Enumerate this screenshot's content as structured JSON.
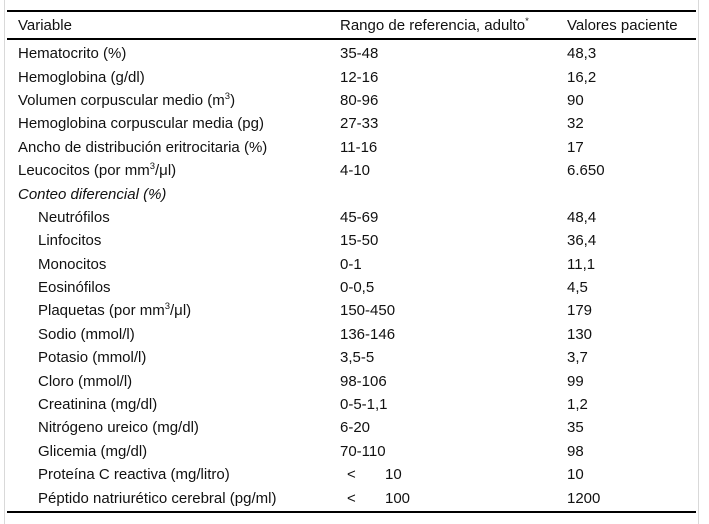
{
  "table": {
    "columns": [
      {
        "label": "Variable"
      },
      {
        "label": "Rango de referencia, adulto",
        "sup": "*"
      },
      {
        "label": "Valores paciente"
      }
    ],
    "rows": [
      {
        "label": [
          {
            "text": "Hematocrito (%)"
          }
        ],
        "indent": false,
        "italic": false,
        "range": "35-48",
        "value": "48,3"
      },
      {
        "label": [
          {
            "text": "Hemoglobina (g/dl)"
          }
        ],
        "indent": false,
        "italic": false,
        "range": "12-16",
        "value": "16,2"
      },
      {
        "label": [
          {
            "text": "Volumen corpuscular medio (m"
          },
          {
            "sup": "3"
          },
          {
            "text": ")"
          }
        ],
        "indent": false,
        "italic": false,
        "range": "80-96",
        "value": "90"
      },
      {
        "label": [
          {
            "text": "Hemoglobina corpuscular media (pg)"
          }
        ],
        "indent": false,
        "italic": false,
        "range": "27-33",
        "value": "32"
      },
      {
        "label": [
          {
            "text": "Ancho de distribución eritrocitaria (%)"
          }
        ],
        "indent": false,
        "italic": false,
        "range": "11-16",
        "value": "17"
      },
      {
        "label": [
          {
            "text": "Leucocitos (por mm"
          },
          {
            "sup": "3"
          },
          {
            "text": "/μl)"
          }
        ],
        "indent": false,
        "italic": false,
        "range": "4-10",
        "value": "6.650"
      },
      {
        "label": [
          {
            "text": "Conteo diferencial (%)"
          }
        ],
        "indent": false,
        "italic": true,
        "range": "",
        "value": ""
      },
      {
        "label": [
          {
            "text": "Neutrófilos"
          }
        ],
        "indent": true,
        "italic": false,
        "range": "45-69",
        "value": "48,4"
      },
      {
        "label": [
          {
            "text": "Linfocitos"
          }
        ],
        "indent": true,
        "italic": false,
        "range": "15-50",
        "value": "36,4"
      },
      {
        "label": [
          {
            "text": "Monocitos"
          }
        ],
        "indent": true,
        "italic": false,
        "range": "0-1",
        "value": "11,1"
      },
      {
        "label": [
          {
            "text": "Eosinófilos"
          }
        ],
        "indent": true,
        "italic": false,
        "range": "0-0,5",
        "value": "4,5"
      },
      {
        "label": [
          {
            "text": "Plaquetas (por mm"
          },
          {
            "sup": "3"
          },
          {
            "text": "/μl)"
          }
        ],
        "indent": true,
        "italic": false,
        "range": "150-450",
        "value": "179"
      },
      {
        "label": [
          {
            "text": "Sodio (mmol/l)"
          }
        ],
        "indent": true,
        "italic": false,
        "range": "136-146",
        "value": "130"
      },
      {
        "label": [
          {
            "text": "Potasio (mmol/l)"
          }
        ],
        "indent": true,
        "italic": false,
        "range": "3,5-5",
        "value": "3,7"
      },
      {
        "label": [
          {
            "text": "Cloro (mmol/l)"
          }
        ],
        "indent": true,
        "italic": false,
        "range": "98-106",
        "value": "99"
      },
      {
        "label": [
          {
            "text": "Creatinina (mg/dl)"
          }
        ],
        "indent": true,
        "italic": false,
        "range": "0-5-1,1",
        "value": "1,2"
      },
      {
        "label": [
          {
            "text": "Nitrógeno ureico (mg/dl)"
          }
        ],
        "indent": true,
        "italic": false,
        "range": "6-20",
        "value": "35"
      },
      {
        "label": [
          {
            "text": "Glicemia (mg/dl)"
          }
        ],
        "indent": true,
        "italic": false,
        "range": "70-110",
        "value": "98"
      },
      {
        "label": [
          {
            "text": "Proteína C reactiva (mg/litro)"
          }
        ],
        "indent": true,
        "italic": false,
        "range_prefix": "<",
        "range": "10",
        "value": "10"
      },
      {
        "label": [
          {
            "text": "Péptido natriurético cerebral (pg/ml)"
          }
        ],
        "indent": true,
        "italic": false,
        "range_prefix": "<",
        "range": "100",
        "value": "1200"
      }
    ]
  },
  "colors": {
    "text": "#111111",
    "rule": "#000000",
    "frame_border": "#d9d9d9",
    "background": "#ffffff"
  }
}
